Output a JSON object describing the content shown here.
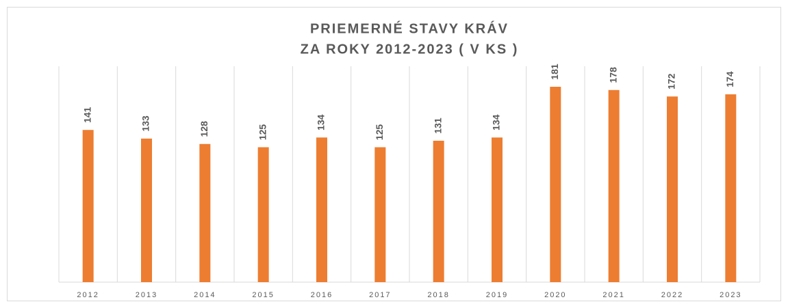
{
  "chart_data": {
    "type": "bar",
    "title": [
      "PRIEMERNÉ STAVY KRÁV",
      "ZA ROKY 2012-2023 ( V KS )"
    ],
    "categories": [
      "2012",
      "2013",
      "2014",
      "2015",
      "2016",
      "2017",
      "2018",
      "2019",
      "2020",
      "2021",
      "2022",
      "2023"
    ],
    "values": [
      141,
      133,
      128,
      125,
      134,
      125,
      131,
      134,
      181,
      178,
      172,
      174
    ],
    "color": "#ed7d31",
    "ylim": [
      0,
      200
    ]
  }
}
